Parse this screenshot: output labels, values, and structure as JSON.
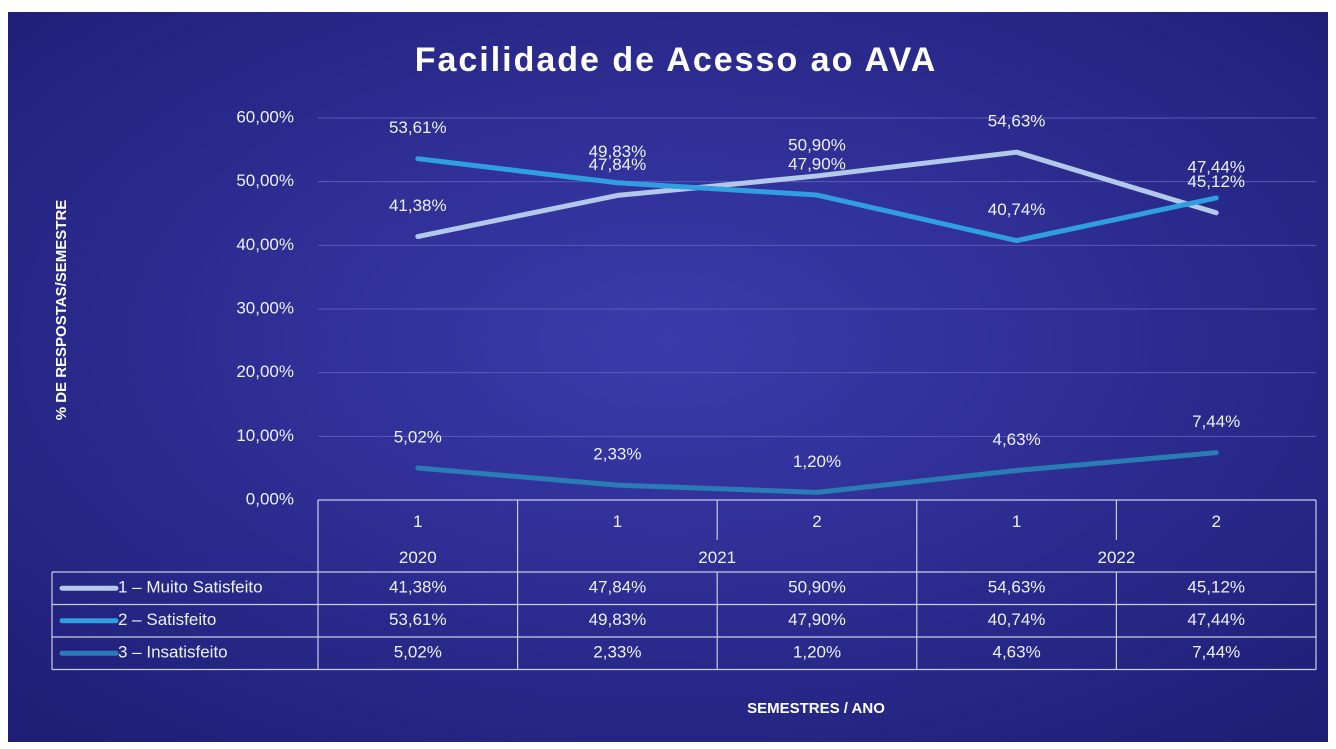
{
  "chart_data": {
    "type": "line",
    "title": "Facilidade de Acesso ao AVA",
    "y_axis_label": "% DE RESPOSTAS/SEMESTRE",
    "x_axis_label": "SEMESTRES / ANO",
    "categories": [
      "1",
      "1",
      "2",
      "1",
      "2"
    ],
    "groups": [
      {
        "label": "2020",
        "size": 1
      },
      {
        "label": "2021",
        "size": 2
      },
      {
        "label": "2022",
        "size": 2
      }
    ],
    "series": [
      {
        "name": "1 – Muito Satisfeito",
        "color": "#b3c9ea",
        "values": [
          41.38,
          47.84,
          50.9,
          54.63,
          45.12
        ],
        "value_labels": [
          "41,38%",
          "47,84%",
          "50,90%",
          "54,63%",
          "45,12%"
        ]
      },
      {
        "name": "2 – Satisfeito",
        "color": "#2f9fe0",
        "values": [
          53.61,
          49.83,
          47.9,
          40.74,
          47.44
        ],
        "value_labels": [
          "53,61%",
          "49,83%",
          "47,90%",
          "40,74%",
          "47,44%"
        ]
      },
      {
        "name": "3 – Insatisfeito",
        "color": "#2a7cb4",
        "values": [
          5.02,
          2.33,
          1.2,
          4.63,
          7.44
        ],
        "value_labels": [
          "5,02%",
          "2,33%",
          "1,20%",
          "4,63%",
          "7,44%"
        ]
      }
    ],
    "ylim": [
      0,
      60
    ],
    "yticks": [
      {
        "value": 0,
        "label": "0,00%"
      },
      {
        "value": 10,
        "label": "10,00%"
      },
      {
        "value": 20,
        "label": "20,00%"
      },
      {
        "value": 30,
        "label": "30,00%"
      },
      {
        "value": 40,
        "label": "40,00%"
      },
      {
        "value": 50,
        "label": "50,00%"
      },
      {
        "value": 60,
        "label": "60,00%"
      }
    ],
    "grid": true,
    "data_table": true
  }
}
